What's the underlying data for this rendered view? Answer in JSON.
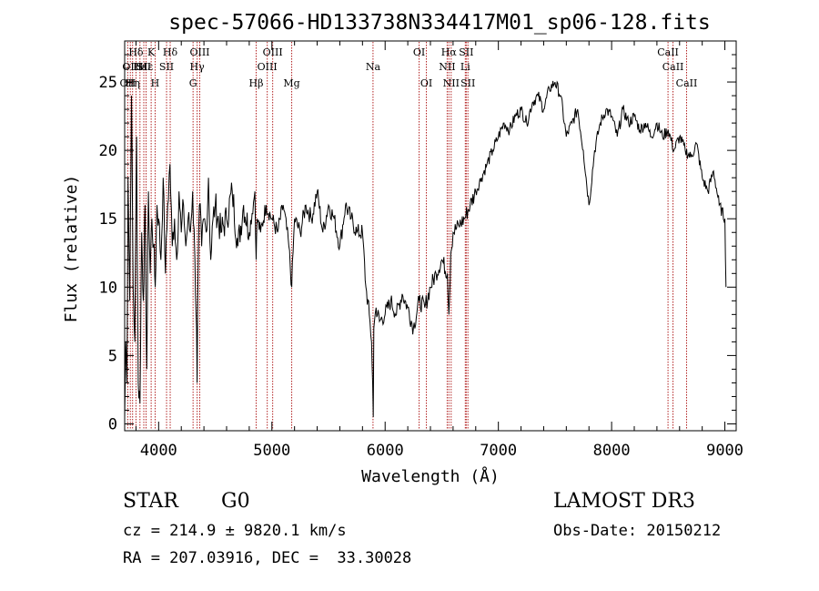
{
  "chart_data": {
    "type": "line",
    "title": "spec-57066-HD133738N334417M01_sp06-128.fits",
    "xlabel": "Wavelength (Å)",
    "ylabel": "Flux (relative)",
    "xlim": [
      3700,
      9100
    ],
    "ylim": [
      -0.5,
      28
    ],
    "x_ticks": [
      4000,
      5000,
      6000,
      7000,
      8000,
      9000
    ],
    "y_ticks": [
      0,
      5,
      10,
      15,
      20,
      25
    ],
    "grid": false,
    "legend": "none",
    "line_color": "#000000",
    "marker_color": "#b22222",
    "series": [
      {
        "x": [
          3700,
          3710,
          3720,
          3730,
          3745,
          3760,
          3775,
          3790,
          3805,
          3820,
          3835,
          3850,
          3865,
          3880,
          3895,
          3910,
          3925,
          3940,
          3955,
          3970,
          3985,
          4000,
          4020,
          4040,
          4060,
          4080,
          4100,
          4120,
          4140,
          4160,
          4180,
          4200,
          4220,
          4240,
          4260,
          4280,
          4300,
          4320,
          4335,
          4340,
          4345,
          4360,
          4380,
          4400,
          4420,
          4440,
          4460,
          4480,
          4500,
          4550,
          4600,
          4650,
          4700,
          4750,
          4800,
          4850,
          4861,
          4870,
          4900,
          4950,
          5000,
          5050,
          5100,
          5150,
          5175,
          5200,
          5250,
          5300,
          5350,
          5400,
          5450,
          5500,
          5550,
          5600,
          5650,
          5700,
          5750,
          5800,
          5830,
          5860,
          5880,
          5890,
          5895,
          5900,
          5920,
          5950,
          6000,
          6050,
          6100,
          6150,
          6200,
          6250,
          6300,
          6350,
          6400,
          6450,
          6500,
          6550,
          6563,
          6580,
          6600,
          6650,
          6700,
          6750,
          6800,
          6850,
          6900,
          6950,
          7000,
          7050,
          7100,
          7150,
          7200,
          7250,
          7300,
          7350,
          7400,
          7450,
          7500,
          7550,
          7600,
          7650,
          7700,
          7750,
          7800,
          7850,
          7900,
          7950,
          8000,
          8050,
          8100,
          8150,
          8200,
          8250,
          8300,
          8350,
          8400,
          8450,
          8500,
          8550,
          8600,
          8650,
          8700,
          8750,
          8800,
          8850,
          8900,
          8950,
          9000,
          9010
        ],
        "y": [
          0.5,
          6,
          3,
          18,
          9,
          24,
          10,
          6,
          21,
          3,
          1.5,
          14,
          9,
          16,
          4,
          17,
          11,
          15,
          13,
          10,
          16,
          15,
          12,
          18,
          11,
          16,
          19,
          13,
          15,
          12,
          17,
          14,
          16,
          13,
          15,
          14,
          17,
          12,
          7,
          3,
          9,
          16,
          13,
          15,
          14,
          18,
          12,
          15,
          16,
          14,
          15,
          17,
          13,
          16,
          14,
          17,
          12,
          15,
          14,
          16,
          15,
          14,
          16,
          13,
          10,
          15,
          14,
          16,
          15,
          17,
          14,
          16,
          15,
          13,
          16,
          15,
          14,
          14,
          10,
          8,
          6,
          3,
          0.5,
          7,
          8.5,
          7.5,
          8,
          9,
          8,
          9.5,
          8.5,
          7,
          9,
          8.5,
          10,
          11,
          12,
          11,
          8,
          12.5,
          14,
          14.5,
          15,
          16,
          17,
          18,
          19,
          20,
          21,
          22,
          21.5,
          22.5,
          23,
          22,
          23.5,
          24,
          23,
          24.5,
          25,
          24,
          21,
          22,
          23,
          20,
          16,
          20,
          22,
          23,
          22.5,
          21,
          23,
          22,
          22.5,
          21.5,
          22,
          21,
          22,
          21,
          21.5,
          20,
          21,
          20,
          19.5,
          20.5,
          18,
          17,
          18.5,
          16,
          15,
          10
        ]
      }
    ],
    "line_markers": [
      {
        "x": 3727,
        "label": "OII",
        "row": 3
      },
      {
        "x": 3750,
        "label": "OII",
        "row": 2
      },
      {
        "x": 3770,
        "label": "Hη",
        "row": 3
      },
      {
        "x": 3800,
        "label": "Hδ",
        "row": 1
      },
      {
        "x": 3835,
        "label": "Hε",
        "row": 2
      },
      {
        "x": 3869,
        "label": "SII",
        "row": 2
      },
      {
        "x": 3889,
        "label": "Hε",
        "row": 2
      },
      {
        "x": 3934,
        "label": "K",
        "row": 1
      },
      {
        "x": 3969,
        "label": "H",
        "row": 3
      },
      {
        "x": 4070,
        "label": "SII",
        "row": 2
      },
      {
        "x": 4102,
        "label": "Hδ",
        "row": 1
      },
      {
        "x": 4304,
        "label": "G",
        "row": 3
      },
      {
        "x": 4340,
        "label": "Hγ",
        "row": 2
      },
      {
        "x": 4363,
        "label": "OIII",
        "row": 1
      },
      {
        "x": 4861,
        "label": "Hβ",
        "row": 3
      },
      {
        "x": 4959,
        "label": "OIII",
        "row": 2
      },
      {
        "x": 5007,
        "label": "OIII",
        "row": 1
      },
      {
        "x": 5175,
        "label": "Mg",
        "row": 3
      },
      {
        "x": 5893,
        "label": "Na",
        "row": 2
      },
      {
        "x": 6300,
        "label": "OI",
        "row": 1
      },
      {
        "x": 6364,
        "label": "OI",
        "row": 3
      },
      {
        "x": 6548,
        "label": "NII",
        "row": 2
      },
      {
        "x": 6563,
        "label": "Hα",
        "row": 1
      },
      {
        "x": 6583,
        "label": "NII",
        "row": 3
      },
      {
        "x": 6708,
        "label": "Li",
        "row": 2
      },
      {
        "x": 6716,
        "label": "SII",
        "row": 1
      },
      {
        "x": 6731,
        "label": "SII",
        "row": 3
      },
      {
        "x": 8498,
        "label": "CaII",
        "row": 1
      },
      {
        "x": 8542,
        "label": "CaII",
        "row": 2
      },
      {
        "x": 8662,
        "label": "CaII",
        "row": 3
      }
    ]
  },
  "info": {
    "object_class": "STAR",
    "subclass": "G0",
    "survey": "LAMOST DR3",
    "redshift": "cz = 214.9 ± 9820.1 km/s",
    "obs_date": "Obs-Date: 20150212",
    "coords": "RA = 207.03916, DEC =  33.30028"
  }
}
